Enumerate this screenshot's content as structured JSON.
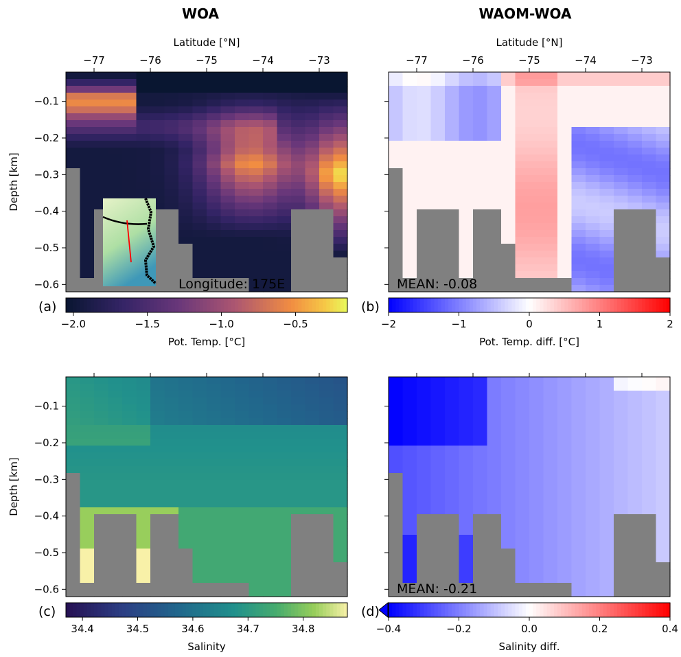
{
  "column_titles": [
    "WOA",
    "WAOM-WOA"
  ],
  "panels": [
    {
      "label": "(a)",
      "annotation": "Longitude: 175E",
      "colorbar_label": "Pot. Temp. [$^{\\circ}$C]",
      "cmap": "plasma",
      "cticks": [
        "−2.0",
        "−1.5",
        "−1.0",
        "−0.5"
      ]
    },
    {
      "label": "(b)",
      "annotation": "MEAN: -0.08",
      "colorbar_label": "Pot. Temp. diff. [$^{\\circ}$C]",
      "cmap": "bwr",
      "cticks": [
        "−2",
        "−1",
        "0",
        "1",
        "2"
      ]
    },
    {
      "label": "(c)",
      "annotation": "",
      "colorbar_label": "Salinity",
      "cmap": "viridis",
      "cticks": [
        "34.4",
        "34.5",
        "34.6",
        "34.7",
        "34.8"
      ]
    },
    {
      "label": "(d)",
      "annotation": "MEAN: -0.21",
      "colorbar_label": "Salinity diff.",
      "cmap": "bwr",
      "cticks": [
        "−0.4",
        "−0.2",
        "0.0",
        "0.2",
        "0.4"
      ]
    }
  ],
  "axes": {
    "top_xlabel": "Latitude [$^{\\circ}$N]",
    "ylabel": "Depth [km]",
    "lat_ticks": [
      "−77",
      "−76",
      "−75",
      "−74",
      "−73"
    ],
    "depth_ticks": [
      "−0.1",
      "−0.2",
      "−0.3",
      "−0.4",
      "−0.5",
      "−0.6"
    ]
  },
  "colors": {
    "land": "#808080",
    "inset_track": "#ff0000",
    "inset_coast": "#000000"
  },
  "chart_data": [
    {
      "type": "heatmap",
      "panel": "a",
      "title": "WOA",
      "variable": "Pot. Temp. [$^{\\circ}$C]",
      "x": "latitude (°N)",
      "xlim": [
        -77.5,
        -72.5
      ],
      "y": "depth (km)",
      "ylim": [
        -0.62,
        -0.02
      ],
      "clim": [
        -2.05,
        -0.15
      ],
      "mean": null,
      "description_values": {
        "surface_north_max": -0.2,
        "deep_south_min": -2.0
      }
    },
    {
      "type": "heatmap",
      "panel": "b",
      "title": "WAOM-WOA",
      "variable": "Pot. Temp. diff. [$^{\\circ}$C]",
      "xlim": [
        -77.5,
        -72.5
      ],
      "ylim": [
        -0.62,
        -0.02
      ],
      "clim": [
        -2,
        2
      ],
      "mean": -0.08
    },
    {
      "type": "heatmap",
      "panel": "c",
      "title": "WOA",
      "variable": "Salinity",
      "xlim": [
        -77.5,
        -72.5
      ],
      "ylim": [
        -0.62,
        -0.02
      ],
      "clim": [
        34.37,
        34.88
      ],
      "mean": null
    },
    {
      "type": "heatmap",
      "panel": "d",
      "title": "WAOM-WOA",
      "variable": "Salinity diff.",
      "xlim": [
        -77.5,
        -72.5
      ],
      "ylim": [
        -0.62,
        -0.02
      ],
      "clim": [
        -0.4,
        0.4
      ],
      "mean": -0.21
    }
  ]
}
